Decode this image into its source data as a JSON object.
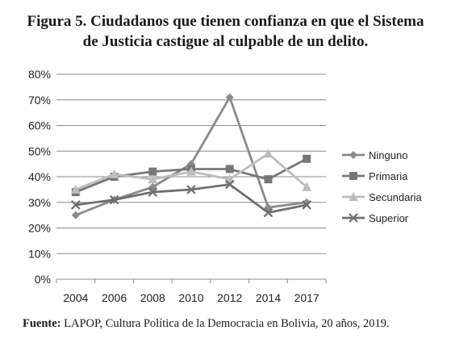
{
  "title": {
    "line1": "Figura 5.  Ciudadanos que tienen confianza en que el Sistema",
    "line2": "de Justicia castigue al culpable de un delito."
  },
  "source": {
    "label": "Fuente:",
    "text": "LAPOP, Cultura Política de la Democracia en Bolivia, 20 años, 2019."
  },
  "chart_data": {
    "type": "line",
    "categories": [
      "2004",
      "2006",
      "2008",
      "2010",
      "2012",
      "2014",
      "2017"
    ],
    "y_ticks": [
      "0%",
      "10%",
      "20%",
      "30%",
      "40%",
      "50%",
      "60%",
      "70%",
      "80%"
    ],
    "ylim": [
      0,
      80
    ],
    "grid": true,
    "legend_position": "right",
    "series": [
      {
        "name": "Ninguno",
        "marker": "diamond",
        "color": "#8a8a8a",
        "values": [
          25,
          31,
          36,
          45,
          71,
          28,
          30
        ]
      },
      {
        "name": "Primaria",
        "marker": "square",
        "color": "#777777",
        "values": [
          34,
          40,
          42,
          43,
          43,
          39,
          47
        ]
      },
      {
        "name": "Secundaria",
        "marker": "triangle",
        "color": "#bdbdbd",
        "values": [
          35,
          41,
          39,
          42,
          39,
          49,
          36
        ]
      },
      {
        "name": "Superior",
        "marker": "x",
        "color": "#6f6f6f",
        "values": [
          29,
          31,
          34,
          35,
          37,
          26,
          29
        ]
      }
    ]
  }
}
